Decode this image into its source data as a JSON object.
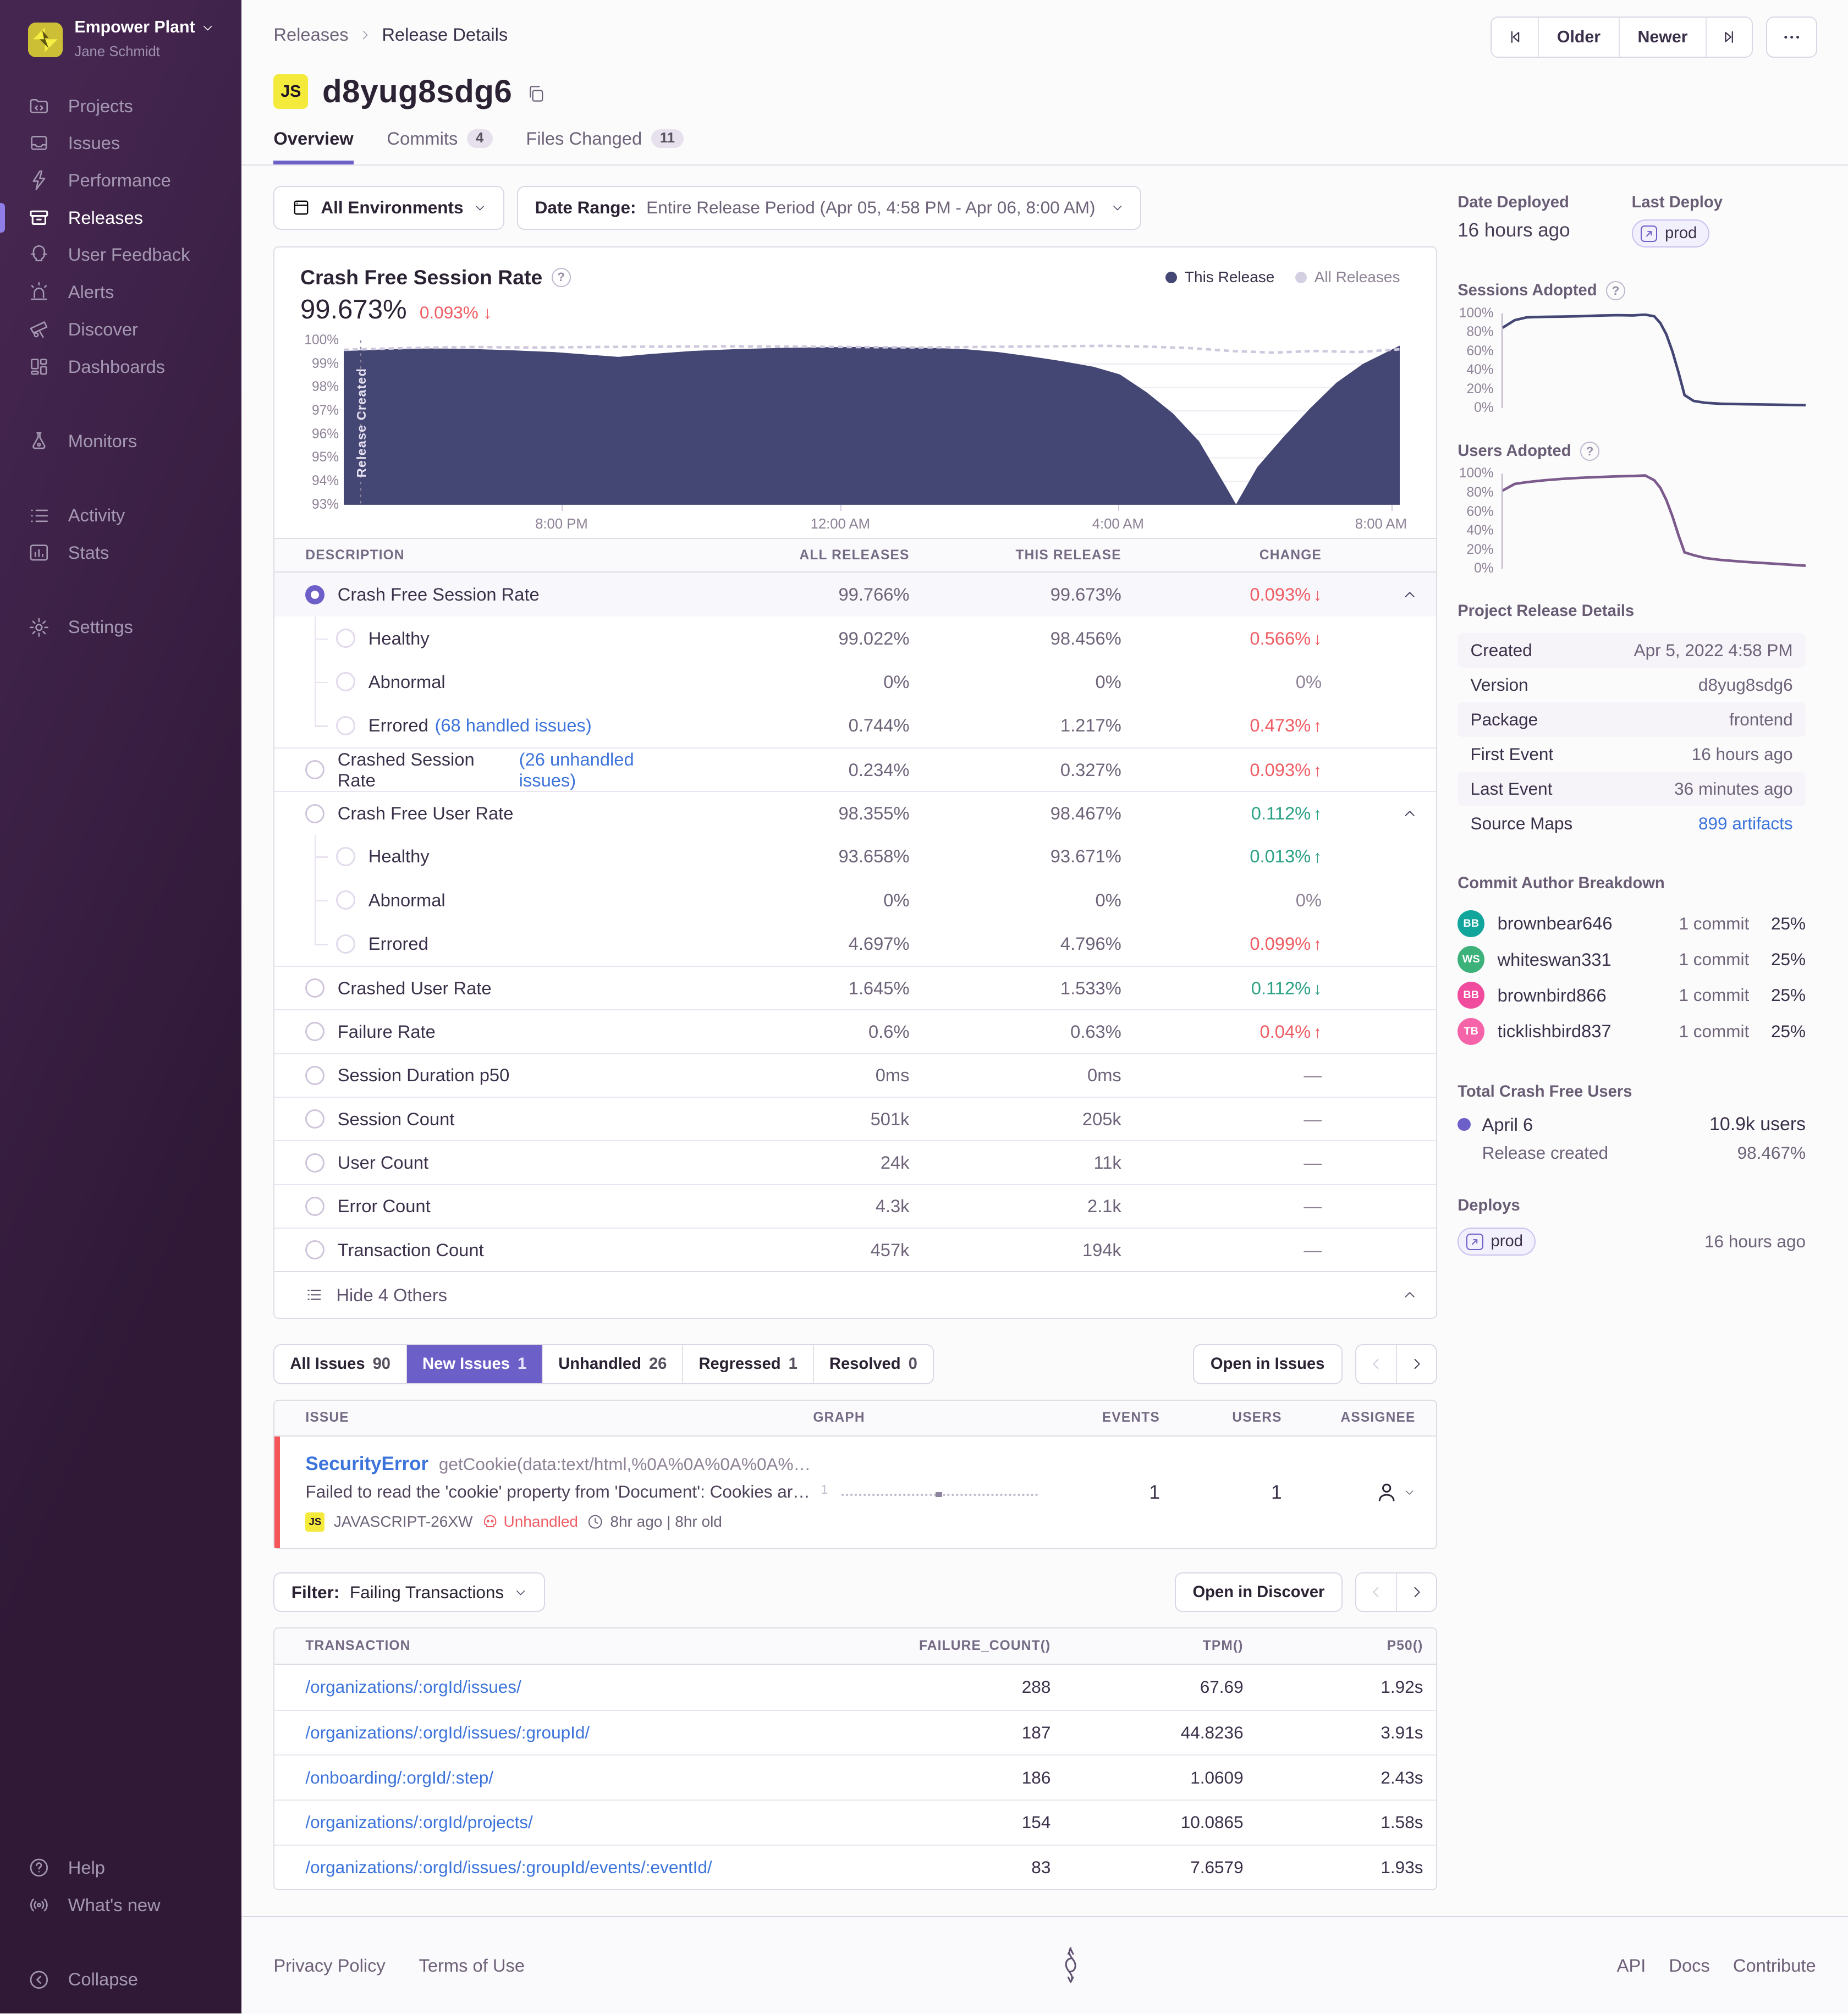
{
  "sidebar": {
    "org": "Empower Plant",
    "user": "Jane Schmidt",
    "items": [
      "Projects",
      "Issues",
      "Performance",
      "Releases",
      "User Feedback",
      "Alerts",
      "Discover",
      "Dashboards",
      "Monitors",
      "Activity",
      "Stats",
      "Settings"
    ],
    "bottom": [
      "Help",
      "What's new",
      "Collapse"
    ]
  },
  "header": {
    "breadcrumb": [
      "Releases",
      "Release Details"
    ],
    "older": "Older",
    "newer": "Newer",
    "project_badge": "JS",
    "title": "d8yug8sdg6",
    "tabs": [
      {
        "label": "Overview",
        "cls": "active"
      },
      {
        "label": "Commits",
        "count": "4"
      },
      {
        "label": "Files Changed",
        "count": "11"
      }
    ]
  },
  "filters": {
    "environments": "All Environments",
    "date_range_label": "Date Range:",
    "date_range_value": "Entire Release Period (Apr 05, 4:58 PM - Apr 06, 8:00 AM)"
  },
  "chart": {
    "title": "Crash Free Session Rate",
    "value": "99.673%",
    "change": "0.093% ↓",
    "legend_this": "This Release",
    "legend_all": "All Releases",
    "annotation": "Release Created"
  },
  "chart_data": [
    {
      "id": "crash-free-sessions",
      "type": "area",
      "title": "Crash Free Session Rate",
      "ylabel": "%",
      "ylim": [
        93,
        100
      ],
      "grid": true,
      "yticks": [
        "100%",
        "99%",
        "98%",
        "97%",
        "96%",
        "95%",
        "94%",
        "93%"
      ],
      "xticks": [
        "8:00 PM",
        "12:00 AM",
        "4:00 AM",
        "8:00 AM"
      ],
      "xtick_pos": [
        20.6,
        47,
        73.3,
        99.2
      ],
      "marker_x": 1.6,
      "annotation": "Release Created",
      "legend_position": "top-right",
      "series": [
        {
          "name": "This Release",
          "color": "#444674",
          "fill": true,
          "x": [
            0,
            4,
            8,
            12,
            16,
            20,
            23,
            26,
            29,
            33,
            37,
            41,
            45,
            49,
            53,
            56,
            59,
            62,
            65,
            68,
            71,
            73.5,
            76,
            78.5,
            81,
            83.5,
            84.5,
            86.5,
            89,
            91.5,
            94,
            96.5,
            100
          ],
          "y": [
            99.55,
            99.62,
            99.66,
            99.64,
            99.58,
            99.5,
            99.4,
            99.3,
            99.42,
            99.55,
            99.63,
            99.68,
            99.71,
            99.72,
            99.7,
            99.68,
            99.62,
            99.5,
            99.32,
            99.12,
            98.88,
            98.55,
            97.8,
            96.9,
            95.7,
            93.8,
            93.02,
            94.6,
            95.9,
            97.1,
            98.2,
            99.0,
            99.78
          ]
        },
        {
          "name": "All Releases",
          "color": "#cfc9dd",
          "dashed": true,
          "x": [
            0,
            6,
            12,
            18,
            24,
            30,
            36,
            42,
            48,
            54,
            60,
            66,
            72,
            76,
            80,
            84,
            88,
            92,
            96,
            100
          ],
          "y": [
            99.6,
            99.68,
            99.72,
            99.7,
            99.72,
            99.74,
            99.75,
            99.74,
            99.72,
            99.7,
            99.72,
            99.75,
            99.77,
            99.74,
            99.68,
            99.55,
            99.48,
            99.55,
            99.5,
            99.62
          ]
        }
      ]
    },
    {
      "id": "sessions-adopted",
      "type": "line",
      "title": "Sessions Adopted",
      "ylim": [
        0,
        100
      ],
      "yticks": [
        "100%",
        "80%",
        "60%",
        "40%",
        "20%",
        "0%"
      ],
      "color": "#444674",
      "x": [
        0,
        4,
        8,
        14,
        20,
        26,
        32,
        38,
        43,
        47,
        50,
        52,
        54,
        56,
        58,
        60,
        63,
        67,
        72,
        80,
        90,
        100
      ],
      "y": [
        85,
        93,
        96,
        96.5,
        96.8,
        97.2,
        97.8,
        98.2,
        98,
        98.8,
        97,
        90,
        78,
        60,
        38,
        14,
        8,
        6,
        5,
        4.5,
        4,
        3.5
      ]
    },
    {
      "id": "users-adopted",
      "type": "line",
      "title": "Users Adopted",
      "ylim": [
        0,
        100
      ],
      "yticks": [
        "100%",
        "80%",
        "60%",
        "40%",
        "20%",
        "0%"
      ],
      "color": "#7c5a8c",
      "x": [
        0,
        4,
        8,
        14,
        20,
        26,
        32,
        38,
        43,
        47,
        50,
        52,
        54,
        56,
        58,
        60,
        63,
        67,
        72,
        80,
        90,
        100
      ],
      "y": [
        82,
        89,
        91,
        93,
        94.5,
        95.5,
        96.3,
        97,
        97.5,
        98,
        93,
        85,
        72,
        55,
        35,
        17,
        14,
        11,
        9,
        7,
        5,
        3
      ]
    }
  ],
  "metrics": {
    "columns": [
      "DESCRIPTION",
      "ALL RELEASES",
      "THIS RELEASE",
      "CHANGE"
    ],
    "rows": [
      {
        "cls": "top selected",
        "label": "Crash Free Session Rate",
        "all": "99.766%",
        "this": "99.673%",
        "change": "0.093%",
        "arrow": "↓",
        "tone": "bad",
        "chevron": true
      },
      {
        "cls": "sub",
        "label": "Healthy",
        "all": "99.022%",
        "this": "98.456%",
        "change": "0.566%",
        "arrow": "↓",
        "tone": "bad"
      },
      {
        "cls": "sub",
        "label": "Abnormal",
        "all": "0%",
        "this": "0%",
        "change": "0%",
        "tone": "muted"
      },
      {
        "cls": "sub last",
        "label": "Errored",
        "link": "(68 handled issues)",
        "all": "0.744%",
        "this": "1.217%",
        "change": "0.473%",
        "arrow": "↑",
        "tone": "bad"
      },
      {
        "cls": "top",
        "label": "Crashed Session Rate",
        "link": "(26 unhandled issues)",
        "all": "0.234%",
        "this": "0.327%",
        "change": "0.093%",
        "arrow": "↑",
        "tone": "bad"
      },
      {
        "cls": "top",
        "label": "Crash Free User Rate",
        "all": "98.355%",
        "this": "98.467%",
        "change": "0.112%",
        "arrow": "↑",
        "tone": "good",
        "chevron": true
      },
      {
        "cls": "sub",
        "label": "Healthy",
        "all": "93.658%",
        "this": "93.671%",
        "change": "0.013%",
        "arrow": "↑",
        "tone": "good"
      },
      {
        "cls": "sub",
        "label": "Abnormal",
        "all": "0%",
        "this": "0%",
        "change": "0%",
        "tone": "muted"
      },
      {
        "cls": "sub last",
        "label": "Errored",
        "all": "4.697%",
        "this": "4.796%",
        "change": "0.099%",
        "arrow": "↑",
        "tone": "bad"
      },
      {
        "cls": "top",
        "label": "Crashed User Rate",
        "all": "1.645%",
        "this": "1.533%",
        "change": "0.112%",
        "arrow": "↓",
        "tone": "good"
      },
      {
        "cls": "top",
        "label": "Failure Rate",
        "all": "0.6%",
        "this": "0.63%",
        "change": "0.04%",
        "arrow": "↑",
        "tone": "bad"
      },
      {
        "cls": "top",
        "label": "Session Duration p50",
        "all": "0ms",
        "this": "0ms",
        "change": "—",
        "tone": "muted"
      },
      {
        "cls": "top",
        "label": "Session Count",
        "all": "501k",
        "this": "205k",
        "change": "—",
        "tone": "muted"
      },
      {
        "cls": "top",
        "label": "User Count",
        "all": "24k",
        "this": "11k",
        "change": "—",
        "tone": "muted"
      },
      {
        "cls": "top",
        "label": "Error Count",
        "all": "4.3k",
        "this": "2.1k",
        "change": "—",
        "tone": "muted"
      },
      {
        "cls": "top",
        "label": "Transaction Count",
        "all": "457k",
        "this": "194k",
        "change": "—",
        "tone": "muted"
      }
    ],
    "footer": "Hide 4 Others"
  },
  "issues": {
    "tabs": [
      {
        "label": "All Issues",
        "count": "90"
      },
      {
        "label": "New Issues",
        "count": "1",
        "cls": "active"
      },
      {
        "label": "Unhandled",
        "count": "26"
      },
      {
        "label": "Regressed",
        "count": "1"
      },
      {
        "label": "Resolved",
        "count": "0"
      }
    ],
    "open_button": "Open in Issues",
    "columns": [
      "ISSUE",
      "GRAPH",
      "EVENTS",
      "USERS",
      "ASSIGNEE"
    ],
    "row": {
      "title": "SecurityError",
      "subtitle": "getCookie(data:text/html,%0A%0A%0A%0A%0A%0…",
      "message": "Failed to read the 'cookie' property from 'Document': Cookies are disa…",
      "project_badge": "JS",
      "short_id": "JAVASCRIPT-26XW",
      "unhandled": "Unhandled",
      "age": "8hr ago | 8hr old",
      "graph_label": "1",
      "events": "1",
      "users": "1"
    }
  },
  "transactions": {
    "filter_label": "Filter:",
    "filter_value": "Failing Transactions",
    "open_button": "Open in Discover",
    "columns": [
      "TRANSACTION",
      "FAILURE_COUNT()",
      "TPM()",
      "P50()"
    ],
    "rows": [
      {
        "transaction": "/organizations/:orgId/issues/",
        "failure_count": "288",
        "tpm": "67.69",
        "p50": "1.92s"
      },
      {
        "transaction": "/organizations/:orgId/issues/:groupId/",
        "failure_count": "187",
        "tpm": "44.8236",
        "p50": "3.91s"
      },
      {
        "transaction": "/onboarding/:orgId/:step/",
        "failure_count": "186",
        "tpm": "1.0609",
        "p50": "2.43s"
      },
      {
        "transaction": "/organizations/:orgId/projects/",
        "failure_count": "154",
        "tpm": "10.0865",
        "p50": "1.58s"
      },
      {
        "transaction": "/organizations/:orgId/issues/:groupId/events/:eventId/",
        "failure_count": "83",
        "tpm": "7.6579",
        "p50": "1.93s"
      }
    ]
  },
  "details": {
    "date_deployed_label": "Date Deployed",
    "date_deployed": "16 hours ago",
    "last_deploy_label": "Last Deploy",
    "last_deploy_env": "prod",
    "sessions_adopted_label": "Sessions Adopted",
    "users_adopted_label": "Users Adopted",
    "project_details_title": "Project Release Details",
    "project_details": [
      {
        "label": "Created",
        "value": "Apr 5, 2022 4:58 PM"
      },
      {
        "label": "Version",
        "value": "d8yug8sdg6"
      },
      {
        "label": "Package",
        "value": "frontend"
      },
      {
        "label": "First Event",
        "value": "16 hours ago"
      },
      {
        "label": "Last Event",
        "value": "36 minutes ago"
      },
      {
        "label": "Source Maps",
        "value": "899 artifacts",
        "valueCls": "link"
      }
    ],
    "authors_title": "Commit Author Breakdown",
    "authors": [
      {
        "initials": "BB",
        "color": "#12a59c",
        "name": "brownbear646",
        "commits": "1 commit",
        "pct": "25%"
      },
      {
        "initials": "WS",
        "color": "#3cb179",
        "name": "whiteswan331",
        "commits": "1 commit",
        "pct": "25%"
      },
      {
        "initials": "BB",
        "color": "#f04b9c",
        "name": "brownbird866",
        "commits": "1 commit",
        "pct": "25%"
      },
      {
        "initials": "TB",
        "color": "#f563a8",
        "name": "ticklishbird837",
        "commits": "1 commit",
        "pct": "25%"
      }
    ],
    "tcfu_title": "Total Crash Free Users",
    "tcfu_date": "April 6",
    "tcfu_users": "10.9k users",
    "tcfu_sub": "Release created",
    "tcfu_pct": "98.467%",
    "deploys_title": "Deploys",
    "deploys_env": "prod",
    "deploys_time": "16 hours ago"
  },
  "footer": {
    "left": [
      "Privacy Policy",
      "Terms of Use"
    ],
    "right": [
      "API",
      "Docs",
      "Contribute"
    ]
  },
  "colors": {
    "accent": "#6c5fc7",
    "link": "#3d74db",
    "negative": "#ef5d64",
    "positive": "#2aa185",
    "chart_this_release": "#444674",
    "chart_all_releases": "#cfc9dd",
    "unhandled_red": "#f55459",
    "project_badge_yellow": "#f4ea3c",
    "sidebar_gradient": [
      "#2f1937",
      "#452650"
    ]
  }
}
